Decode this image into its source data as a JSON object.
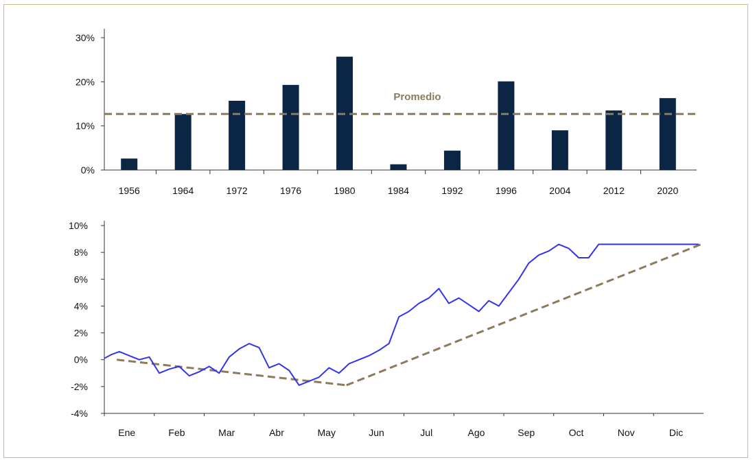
{
  "chart_data": [
    {
      "type": "bar",
      "categories": [
        "1956",
        "1964",
        "1972",
        "1976",
        "1980",
        "1984",
        "1992",
        "1996",
        "2004",
        "2012",
        "2020"
      ],
      "values": [
        2.6,
        12.7,
        15.7,
        19.3,
        25.7,
        1.3,
        4.4,
        20.1,
        9.0,
        13.5,
        16.3
      ],
      "ylim": [
        0,
        30
      ],
      "yticks": [
        0,
        10,
        20,
        30
      ],
      "ytick_labels": [
        "0%",
        "10%",
        "20%",
        "30%"
      ],
      "bar_color": "#0b2545",
      "reference_line": {
        "label": "Promedio",
        "value": 12.7,
        "style": "dashed",
        "color": "#8c7a5b"
      },
      "grid": false
    },
    {
      "type": "line",
      "xlim": [
        0,
        12
      ],
      "ylim": [
        -4,
        10
      ],
      "yticks": [
        -4,
        -2,
        0,
        2,
        4,
        6,
        8,
        10
      ],
      "ytick_labels": [
        "-4%",
        "-2%",
        "0%",
        "2%",
        "4%",
        "6%",
        "8%",
        "10%"
      ],
      "month_labels": [
        "Ene",
        "Feb",
        "Mar",
        "Abr",
        "May",
        "Jun",
        "Jul",
        "Ago",
        "Sep",
        "Oct",
        "Nov",
        "Dic"
      ],
      "series": [
        {
          "color": "#3333ee",
          "x": [
            0,
            0.15,
            0.3,
            0.5,
            0.7,
            0.9,
            1.1,
            1.3,
            1.5,
            1.7,
            1.9,
            2.1,
            2.3,
            2.5,
            2.7,
            2.9,
            3.1,
            3.3,
            3.5,
            3.7,
            3.9,
            4.1,
            4.3,
            4.5,
            4.7,
            4.9,
            5.1,
            5.3,
            5.5,
            5.7,
            5.9,
            6.1,
            6.3,
            6.5,
            6.7,
            6.9,
            7.1,
            7.3,
            7.5,
            7.7,
            7.9,
            8.1,
            8.3,
            8.5,
            8.7,
            8.9,
            9.1,
            9.3,
            9.5,
            9.7,
            9.9,
            10.1,
            10.3,
            10.5,
            10.7,
            10.9,
            11.1,
            11.3,
            11.5,
            11.7,
            11.9
          ],
          "values": [
            0.1,
            0.4,
            0.6,
            0.3,
            0.0,
            0.2,
            -1.0,
            -0.7,
            -0.5,
            -1.2,
            -0.9,
            -0.5,
            -1.0,
            0.2,
            0.8,
            1.2,
            0.9,
            -0.6,
            -0.3,
            -0.8,
            -1.9,
            -1.6,
            -1.3,
            -0.6,
            -1.0,
            -0.3,
            0.0,
            0.3,
            0.7,
            1.2,
            3.2,
            3.6,
            4.2,
            4.6,
            5.3,
            4.2,
            4.6,
            4.1,
            3.6,
            4.4,
            4.0,
            5.0,
            6.0,
            7.2,
            7.8,
            8.1,
            8.6,
            8.3,
            7.6,
            7.6,
            8.6,
            8.6,
            8.6,
            8.6,
            8.6,
            8.6,
            8.6,
            8.6,
            8.6,
            8.6,
            8.6
          ]
        }
      ],
      "trend_lines": [
        {
          "color": "#8c7a5b",
          "style": "dashed",
          "x": [
            0.25,
            4.85
          ],
          "values": [
            0.0,
            -1.9
          ]
        },
        {
          "color": "#8c7a5b",
          "style": "dashed",
          "x": [
            4.85,
            11.95
          ],
          "values": [
            -1.9,
            8.6
          ]
        }
      ],
      "grid": false
    }
  ]
}
